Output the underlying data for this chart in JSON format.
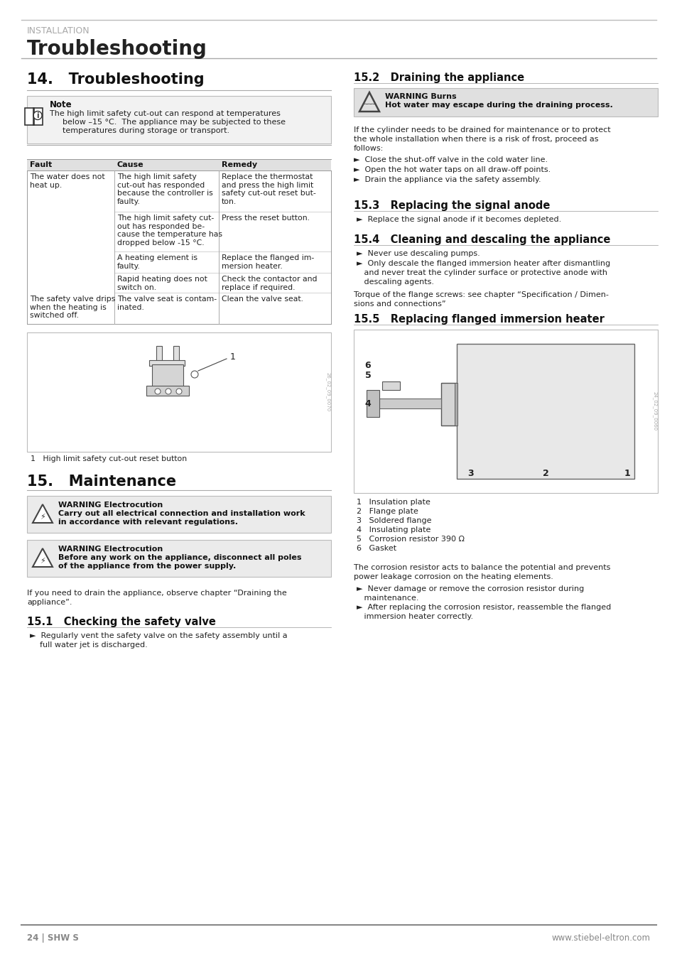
{
  "page_bg": "#ffffff",
  "header_install_text": "INSTALLATION",
  "header_title_text": "Troubleshooting",
  "footer_left": "24 | SHW S",
  "footer_right": "www.stiebel-eltron.com",
  "section14_title": "14.   Troubleshooting",
  "note_title": "Note",
  "note_text_line1": "The high limit safety cut-out can respond at temperatures",
  "note_text_line2": "below –15 °C.  The appliance may be subjected to these",
  "note_text_line3": "temperatures during storage or transport.",
  "table_header_bg": "#e0e0e0",
  "table_col1_header": "Fault",
  "table_col2_header": "Cause",
  "table_col3_header": "Remedy",
  "table_rows": [
    [
      "The water does not\nheat up.",
      "The high limit safety\ncut-out has responded\nbecause the controller is\nfaulty.",
      "Replace the thermostat\nand press the high limit\nsafety cut-out reset but-\nton."
    ],
    [
      "",
      "The high limit safety cut-\nout has responded be-\ncause the temperature has\ndropped below -15 °C.",
      "Press the reset button."
    ],
    [
      "",
      "A heating element is\nfaulty.",
      "Replace the flanged im-\nmersion heater."
    ],
    [
      "",
      "Rapid heating does not\nswitch on.",
      "Check the contactor and\nreplace if required."
    ],
    [
      "The safety valve drips\nwhen the heating is\nswitched off.",
      "The valve seat is contam-\ninated.",
      "Clean the valve seat."
    ]
  ],
  "diagram_caption": "1   High limit safety cut-out reset button",
  "section15_title": "15.   Maintenance",
  "warn1_title": "WARNING Electrocution",
  "warn1_text": "Carry out all electrical connection and installation work\nin accordance with relevant regulations.",
  "warn2_title": "WARNING Electrocution",
  "warn2_text": "Before any work on the appliance, disconnect all poles\nof the appliance from the power supply.",
  "drain_text_line1": "If you need to drain the appliance, observe chapter “Draining the",
  "drain_text_line2": "appliance”.",
  "section151_title": "15.1   Checking the safety valve",
  "section151_text_line1": "►  Regularly vent the safety valve on the safety assembly until a",
  "section151_text_line2": "    full water jet is discharged.",
  "section152_title": "15.2   Draining the appliance",
  "warn3_title": "WARNING Burns",
  "warn3_text": "Hot water may escape during the draining process.",
  "drain_body_line1": "If the cylinder needs to be drained for maintenance or to protect",
  "drain_body_line2": "the whole installation when there is a risk of frost, proceed as",
  "drain_body_line3": "follows:",
  "drain_bullets": [
    "►  Close the shut-off valve in the cold water line.",
    "►  Open the hot water taps on all draw-off points.",
    "►  Drain the appliance via the safety assembly."
  ],
  "section153_title": "15.3   Replacing the signal anode",
  "section153_text": "►  Replace the signal anode if it becomes depleted.",
  "section154_title": "15.4   Cleaning and descaling the appliance",
  "section154_bullet1": "►  Never use descaling pumps.",
  "section154_bullet2_line1": "►  Only descale the flanged immersion heater after dismantling",
  "section154_bullet2_line2": "   and never treat the cylinder surface or protective anode with",
  "section154_bullet2_line3": "   descaling agents.",
  "torque_line1": "Torque of the flange screws: see chapter “Specification / Dimen-",
  "torque_line2": "sions and connections”",
  "section155_title": "15.5   Replacing flanged immersion heater",
  "diagram2_labels": [
    "1   Insulation plate",
    "2   Flange plate",
    "3   Soldered flange",
    "4   Insulating plate",
    "5   Corrosion resistor 390 Ω",
    "6   Gasket"
  ],
  "corrosion_line1": "The corrosion resistor acts to balance the potential and prevents",
  "corrosion_line2": "power leakage corrosion on the heating elements.",
  "corrosion_bullet1_line1": "►  Never damage or remove the corrosion resistor during",
  "corrosion_bullet1_line2": "   maintenance.",
  "corrosion_bullet2_line1": "►  After replacing the corrosion resistor, reassemble the flanged",
  "corrosion_bullet2_line2": "   immersion heater correctly."
}
